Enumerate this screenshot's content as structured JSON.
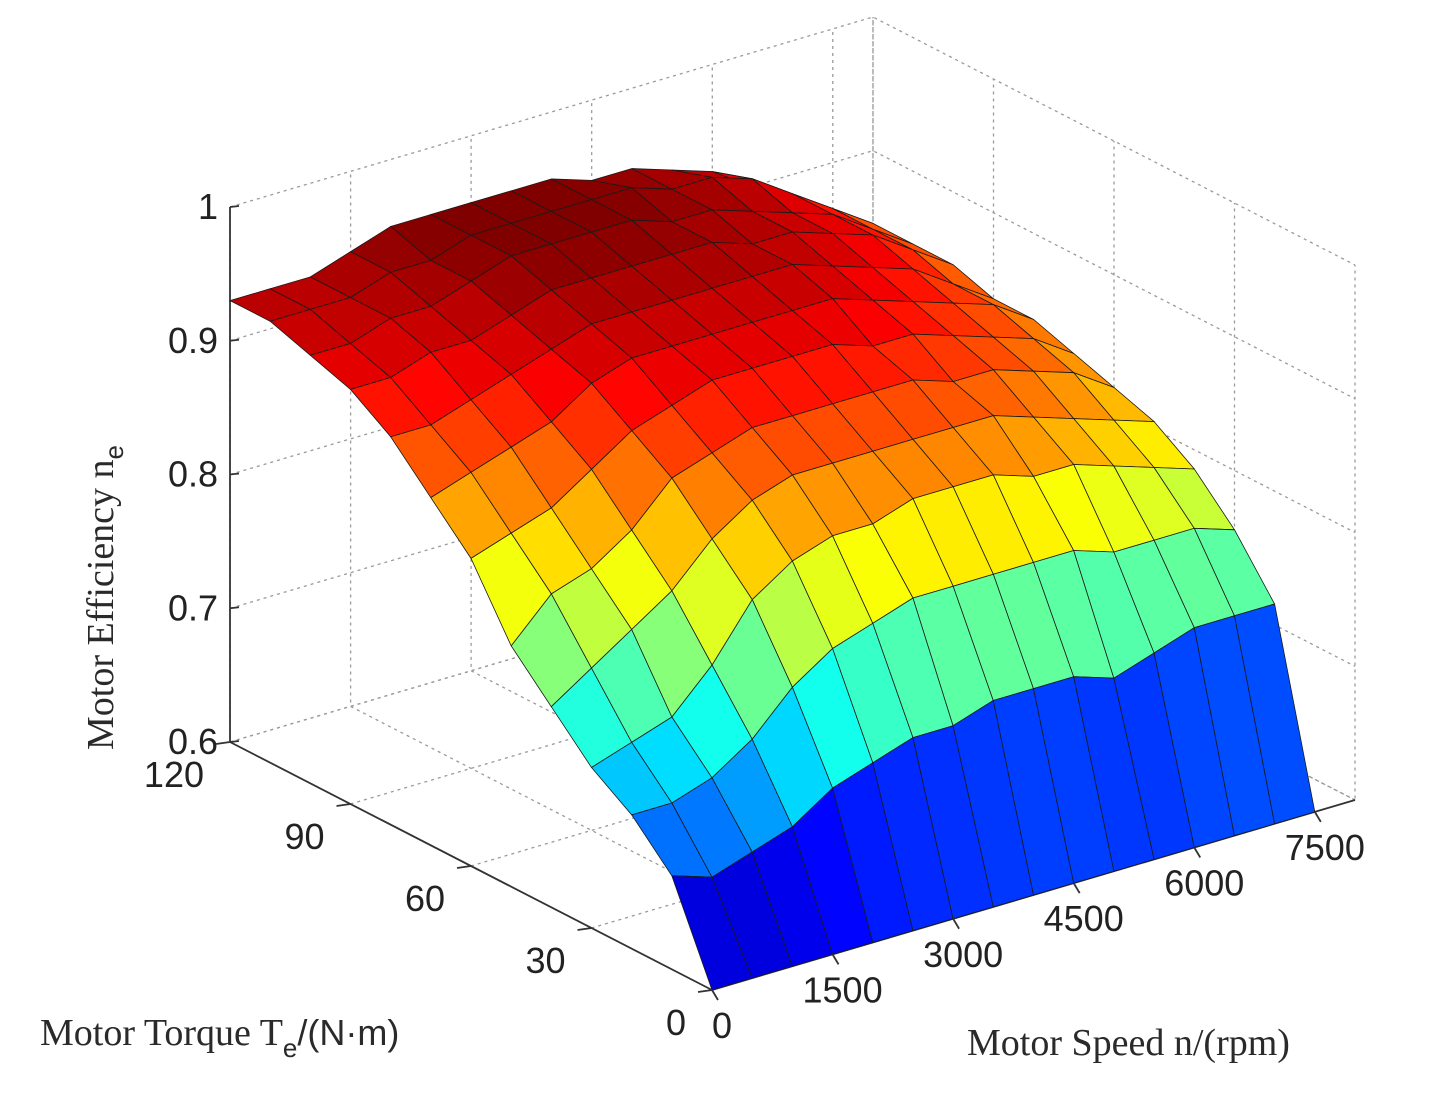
{
  "chart_data": {
    "type": "surface",
    "x_axis": {
      "label_main": "Motor Speed n/(rpm)",
      "ticks": [
        "0",
        "1500",
        "3000",
        "4500",
        "6000",
        "7500"
      ],
      "tick_values": [
        0,
        1500,
        3000,
        4500,
        6000,
        7500
      ],
      "range": [
        0,
        8000
      ]
    },
    "y_axis": {
      "label_main": "Motor Torque T",
      "label_sub": "e",
      "label_tail": "/(N·m)",
      "ticks": [
        "0",
        "30",
        "60",
        "90",
        "120"
      ],
      "tick_values": [
        0,
        30,
        60,
        90,
        120
      ],
      "range": [
        0,
        120
      ]
    },
    "z_axis": {
      "label_main": "Motor Efficiency n",
      "label_sub": "e",
      "ticks": [
        "0.6",
        "0.7",
        "0.8",
        "0.9",
        "1"
      ],
      "tick_values": [
        0.6,
        0.7,
        0.8,
        0.9,
        1.0
      ],
      "range": [
        0.6,
        1.0
      ]
    },
    "grid": true,
    "colormap": "jet",
    "speed_values": [
      0,
      500,
      1000,
      1500,
      2000,
      2500,
      3000,
      3500,
      4000,
      4500,
      5000,
      5500,
      6000,
      6500,
      7000,
      7500
    ],
    "torque_values": [
      0,
      10,
      20,
      30,
      40,
      50,
      60,
      70,
      80,
      90,
      100,
      110,
      120
    ],
    "efficiency_by_speed_torque": [
      [
        0.6,
        0.67,
        0.7,
        0.72,
        0.75,
        0.78,
        0.83,
        0.86,
        0.89,
        0.91,
        0.92,
        0.93,
        0.93
      ],
      [
        0.6,
        0.66,
        0.7,
        0.73,
        0.77,
        0.81,
        0.84,
        0.87,
        0.89,
        0.91,
        0.92,
        0.93,
        0.93
      ],
      [
        0.6,
        0.67,
        0.71,
        0.74,
        0.79,
        0.82,
        0.85,
        0.88,
        0.9,
        0.92,
        0.93,
        0.93,
        0.93
      ],
      [
        0.6,
        0.68,
        0.73,
        0.77,
        0.81,
        0.84,
        0.87,
        0.89,
        0.91,
        0.92,
        0.93,
        0.94,
        0.94
      ],
      [
        0.6,
        0.7,
        0.76,
        0.81,
        0.84,
        0.87,
        0.89,
        0.91,
        0.92,
        0.93,
        0.94,
        0.94,
        0.95
      ],
      [
        0.6,
        0.71,
        0.78,
        0.83,
        0.86,
        0.88,
        0.9,
        0.92,
        0.93,
        0.94,
        0.95,
        0.95,
        0.95
      ],
      [
        0.6,
        0.72,
        0.79,
        0.84,
        0.87,
        0.89,
        0.91,
        0.92,
        0.93,
        0.94,
        0.95,
        0.95,
        0.95
      ],
      [
        0.6,
        0.72,
        0.8,
        0.84,
        0.87,
        0.89,
        0.91,
        0.92,
        0.93,
        0.94,
        0.95,
        0.95,
        0.95
      ],
      [
        0.6,
        0.73,
        0.8,
        0.85,
        0.87,
        0.89,
        0.91,
        0.92,
        0.93,
        0.94,
        0.95,
        0.95,
        0.95
      ],
      [
        0.6,
        0.73,
        0.8,
        0.85,
        0.87,
        0.89,
        0.91,
        0.92,
        0.93,
        0.94,
        0.94,
        0.95,
        0.94
      ],
      [
        0.6,
        0.73,
        0.8,
        0.85,
        0.87,
        0.89,
        0.9,
        0.92,
        0.93,
        0.93,
        0.94,
        0.94,
        0.94
      ],
      [
        0.6,
        0.72,
        0.8,
        0.84,
        0.87,
        0.88,
        0.9,
        0.91,
        0.92,
        0.93,
        0.93,
        0.94,
        0.93
      ],
      [
        0.6,
        0.73,
        0.79,
        0.84,
        0.86,
        0.88,
        0.89,
        0.9,
        0.91,
        0.92,
        0.92,
        0.93,
        0.92
      ],
      [
        0.6,
        0.74,
        0.79,
        0.83,
        0.85,
        0.87,
        0.88,
        0.89,
        0.9,
        0.91,
        0.91,
        0.91,
        0.9
      ],
      [
        0.6,
        0.74,
        0.79,
        0.82,
        0.84,
        0.86,
        0.87,
        0.88,
        0.88,
        0.89,
        0.89,
        0.89,
        0.88
      ],
      [
        0.6,
        0.74,
        0.78,
        0.81,
        0.83,
        0.84,
        0.85,
        0.86,
        0.86,
        0.87,
        0.87,
        0.87,
        0.86
      ]
    ]
  }
}
